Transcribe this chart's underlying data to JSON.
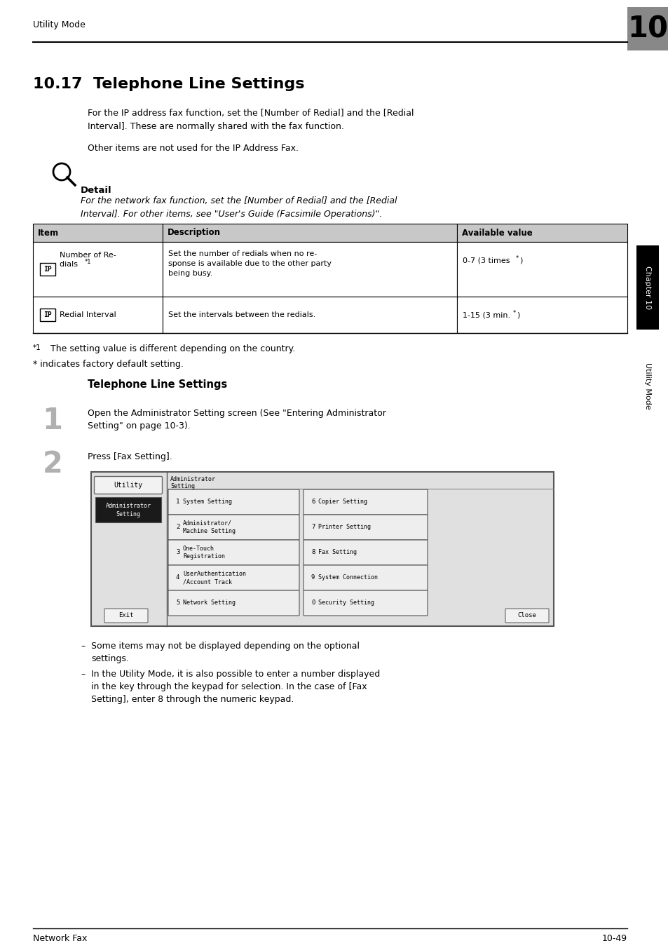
{
  "page_title": "Utility Mode",
  "chapter_num": "10",
  "section_title": "10.17  Telephone Line Settings",
  "body_para1": "For the IP address fax function, set the [Number of Redial] and the [Redial\nInterval]. These are normally shared with the fax function.",
  "body_para2": "Other items are not used for the IP Address Fax.",
  "detail_label": "Detail",
  "detail_italic": "For the network fax function, set the [Number of Redial] and the [Redial\nInterval]. For other items, see \"User's Guide (Facsimile Operations)\".",
  "table_headers": [
    "Item",
    "Description",
    "Available value"
  ],
  "table_row1_item_line1": "Number of Re-",
  "table_row1_item_line2": "dials ",
  "table_row1_item_super": "*1",
  "table_row1_desc": "Set the number of redials when no re-\nsponse is available due to the other party\nbeing busy.",
  "table_row1_val_main": "0-7 (3 times",
  "table_row1_val_super": "*",
  "table_row1_val_end": ")",
  "table_row2_item": "Redial Interval",
  "table_row2_desc": "Set the intervals between the redials.",
  "table_row2_val_main": "1-15 (3 min.",
  "table_row2_val_super": "*",
  "table_row2_val_end": ")",
  "footnote1a": "*1",
  "footnote1b": "The setting value is different depending on the country.",
  "footnote2": "* indicates factory default setting.",
  "subsection_title": "Telephone Line Settings",
  "step1_num": "1",
  "step1_text": "Open the Administrator Setting screen (See \"Entering Administrator\nSetting\" on page 10-3).",
  "step2_num": "2",
  "step2_text": "Press [Fax Setting].",
  "screen_title": "Administrator\nSetting",
  "screen_utility": "Utility",
  "screen_admin_line1": "Administrator",
  "screen_admin_line2": "Setting",
  "bullet1_line1": "Some items may not be displayed depending on the optional",
  "bullet1_line2": "settings.",
  "bullet2_line1": "In the Utility Mode, it is also possible to enter a number displayed",
  "bullet2_line2": "in the key through the keypad for selection. In the case of [Fax",
  "bullet2_line3": "Setting], enter 8 through the numeric keypad.",
  "footer_left": "Network Fax",
  "footer_right": "10-49",
  "sidebar_chapter": "Chapter 10",
  "sidebar_utility": "Utility Mode",
  "bg_color": "#ffffff",
  "table_header_bg": "#c8c8c8",
  "sidebar_chapter_bg": "#000000",
  "sidebar_chapter_fg": "#ffffff",
  "sidebar_utility_fg": "#000000"
}
